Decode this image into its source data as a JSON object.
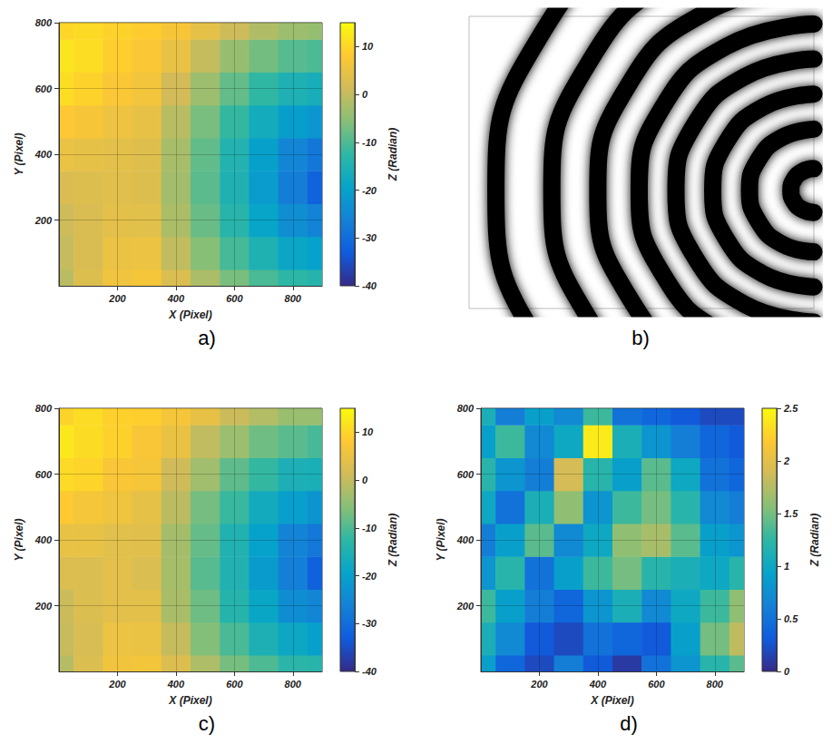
{
  "chart_data": [
    {
      "type": "surface",
      "title": "a)",
      "x_label": "X (Pixel)",
      "y_label": "Y (Pixel)",
      "z_label": "Z (Radian)",
      "x": [
        0,
        100,
        200,
        300,
        400,
        500,
        600,
        700,
        800,
        900
      ],
      "y": [
        0,
        100,
        200,
        300,
        400,
        500,
        600,
        700,
        800
      ],
      "z": [
        [
          -1,
          3,
          6,
          6.7,
          2.6,
          -2.3,
          -6.7,
          -10.4,
          -12.9,
          -13.8
        ],
        [
          0,
          2.5,
          5,
          5.3,
          -0.2,
          -5.6,
          -10.7,
          -15.1,
          -18.5,
          -19.8
        ],
        [
          1,
          2.5,
          4,
          3.7,
          -2.2,
          -7.9,
          -13.6,
          -19.0,
          -23.6,
          -25.8
        ],
        [
          2.5,
          3,
          3.5,
          3.0,
          -3.0,
          -9.0,
          -14.9,
          -20.9,
          -26.9,
          -31.8
        ],
        [
          5,
          4.5,
          4,
          3.3,
          -2.6,
          -8.5,
          -14.4,
          -20.1,
          -25.3,
          -28.2
        ],
        [
          8,
          7,
          5.5,
          4.6,
          -1.1,
          -6.7,
          -12.1,
          -16.9,
          -20.6,
          -22.2
        ],
        [
          11,
          9.5,
          7.5,
          6.3,
          1.4,
          -3.6,
          -8.4,
          -12.4,
          -15.2,
          -16.2
        ],
        [
          12,
          11,
          9,
          7.5,
          4.8,
          0.1,
          -4.1,
          -7.1,
          -9.4,
          -10.2
        ],
        [
          10,
          10.5,
          9.5,
          8.7,
          7.0,
          4.3,
          1.0,
          -1.8,
          -3.6,
          -4.2
        ]
      ],
      "xlim": [
        0,
        900
      ],
      "ylim": [
        0,
        800
      ],
      "zlim": [
        -40,
        15
      ],
      "xticks": [
        200,
        400,
        600,
        800
      ],
      "yticks": [
        200,
        400,
        600,
        800
      ],
      "zticks": [
        -40,
        -30,
        -20,
        -10,
        0,
        10
      ],
      "grid": true
    },
    {
      "type": "line",
      "title": "b)",
      "color": "#000000",
      "xlim": [
        0,
        900
      ],
      "ylim": [
        0,
        800
      ],
      "tick_labels": false,
      "series": [
        {
          "values": [
            [
              900,
              383
            ],
            [
              870,
              375
            ],
            [
              848,
              353
            ],
            [
              840,
              323
            ],
            [
              848,
              293
            ],
            [
              870,
              271
            ],
            [
              900,
              263
            ]
          ]
        },
        {
          "values": [
            [
              900,
              491
            ],
            [
              816,
              468
            ],
            [
              755,
              407
            ],
            [
              732,
              323
            ],
            [
              755,
              239
            ],
            [
              816,
              177
            ],
            [
              900,
              155
            ]
          ]
        },
        {
          "values": [
            [
              900,
              587
            ],
            [
              768,
              552
            ],
            [
              671,
              455
            ],
            [
              636,
              323
            ],
            [
              671,
              191
            ],
            [
              768,
              94
            ],
            [
              900,
              59
            ]
          ]
        },
        {
          "values": [
            [
              900,
              683
            ],
            [
              720,
              635
            ],
            [
              588,
              503
            ],
            [
              540,
              323
            ],
            [
              588,
              143
            ],
            [
              720,
              11
            ],
            [
              900,
              -37
            ]
          ]
        },
        {
          "values": [
            [
              900,
              779
            ],
            [
              672,
              718
            ],
            [
              505,
              551
            ],
            [
              444,
              323
            ],
            [
              505,
              95
            ],
            [
              672,
              -72
            ],
            [
              900,
              -133
            ]
          ]
        },
        {
          "values": [
            [
              900,
              887
            ],
            [
              618,
              811
            ],
            [
              412,
              605
            ],
            [
              336,
              323
            ],
            [
              412,
              41
            ],
            [
              618,
              -165
            ],
            [
              900,
              -241
            ]
          ]
        },
        {
          "values": [
            [
              900,
              1007
            ],
            [
              558,
              915
            ],
            [
              308,
              665
            ],
            [
              216,
              323
            ],
            [
              308,
              -19
            ],
            [
              558,
              -269
            ],
            [
              900,
              -361
            ]
          ]
        },
        {
          "values": [
            [
              900,
              1153
            ],
            [
              485,
              1042
            ],
            [
              181,
              738
            ],
            [
              70,
              323
            ],
            [
              181,
              -92
            ],
            [
              485,
              -396
            ],
            [
              900,
              -507
            ]
          ]
        }
      ]
    },
    {
      "type": "surface",
      "title": "c)",
      "x_label": "X (Pixel)",
      "y_label": "Y (Pixel)",
      "z_label": "Z (Radian)",
      "x": [
        0,
        100,
        200,
        300,
        400,
        500,
        600,
        700,
        800,
        900
      ],
      "y": [
        0,
        100,
        200,
        300,
        400,
        500,
        600,
        700,
        800
      ],
      "z": [
        [
          -1.3,
          2.8,
          6.2,
          6.5,
          2.9,
          -2.0,
          -6.9,
          -10.1,
          -13.2,
          -13.5
        ],
        [
          0.4,
          2.2,
          5.3,
          5.0,
          0.1,
          -5.9,
          -10.4,
          -15.4,
          -18.2,
          -20.1
        ],
        [
          0.7,
          2.8,
          3.8,
          4.0,
          -2.5,
          -7.6,
          -13.9,
          -18.7,
          -23.9,
          -25.5
        ],
        [
          2.9,
          2.7,
          3.8,
          2.7,
          -2.7,
          -9.3,
          -14.6,
          -21.2,
          -26.6,
          -32.1
        ],
        [
          4.7,
          4.8,
          3.7,
          3.6,
          -2.9,
          -8.2,
          -14.7,
          -19.8,
          -25.6,
          -27.9
        ],
        [
          8.3,
          6.7,
          5.8,
          4.3,
          -0.8,
          -7.0,
          -11.8,
          -17.2,
          -20.3,
          -22.5
        ],
        [
          10.6,
          9.8,
          7.2,
          6.7,
          1.1,
          -3.3,
          -8.7,
          -12.1,
          -15.5,
          -15.9
        ],
        [
          12.4,
          10.7,
          9.3,
          7.2,
          5.1,
          -0.2,
          -3.8,
          -7.4,
          -9.1,
          -10.5
        ],
        [
          9.6,
          10.8,
          9.2,
          9.0,
          6.7,
          4.6,
          0.7,
          -1.5,
          -3.9,
          -3.9
        ]
      ],
      "xlim": [
        0,
        900
      ],
      "ylim": [
        0,
        800
      ],
      "zlim": [
        -40,
        15
      ],
      "xticks": [
        200,
        400,
        600,
        800
      ],
      "yticks": [
        200,
        400,
        600,
        800
      ],
      "zticks": [
        -40,
        -30,
        -20,
        -10,
        0,
        10
      ],
      "grid": true
    },
    {
      "type": "surface",
      "title": "d)",
      "x_label": "X (Pixel)",
      "y_label": "Y (Pixel)",
      "z_label": "Z (Radian)",
      "x": [
        0,
        100,
        200,
        300,
        400,
        500,
        600,
        700,
        800,
        900
      ],
      "y": [
        0,
        100,
        200,
        300,
        400,
        500,
        600,
        700,
        800
      ],
      "z": [
        [
          0.9,
          0.4,
          0.2,
          0.6,
          0.3,
          0.1,
          0.5,
          0.8,
          1.2,
          1.4
        ],
        [
          1.1,
          0.7,
          0.3,
          0.2,
          0.5,
          0.4,
          0.3,
          0.9,
          1.5,
          1.8
        ],
        [
          1.3,
          0.9,
          0.6,
          0.4,
          0.8,
          1.1,
          0.7,
          1.0,
          1.3,
          1.6
        ],
        [
          0.8,
          1.2,
          0.5,
          0.9,
          1.3,
          1.5,
          1.2,
          1.1,
          1.0,
          1.2
        ],
        [
          0.6,
          0.9,
          1.4,
          0.7,
          1.0,
          1.6,
          1.7,
          1.4,
          0.9,
          0.8
        ],
        [
          1.0,
          0.5,
          1.1,
          1.6,
          0.8,
          1.3,
          1.5,
          1.2,
          0.7,
          0.6
        ],
        [
          1.2,
          0.8,
          0.6,
          1.9,
          1.2,
          0.9,
          1.4,
          1.0,
          0.5,
          0.4
        ],
        [
          0.9,
          1.3,
          0.7,
          1.0,
          2.4,
          1.1,
          0.8,
          0.6,
          0.4,
          0.3
        ],
        [
          1.1,
          0.6,
          0.9,
          0.7,
          1.3,
          0.5,
          0.4,
          0.3,
          0.2,
          0.2
        ]
      ],
      "xlim": [
        0,
        900
      ],
      "ylim": [
        0,
        800
      ],
      "zlim": [
        0,
        2.5
      ],
      "xticks": [
        200,
        400,
        600,
        800
      ],
      "yticks": [
        200,
        400,
        600,
        800
      ],
      "zticks": [
        0,
        0.5,
        1,
        1.5,
        2,
        2.5
      ],
      "grid": true
    }
  ]
}
